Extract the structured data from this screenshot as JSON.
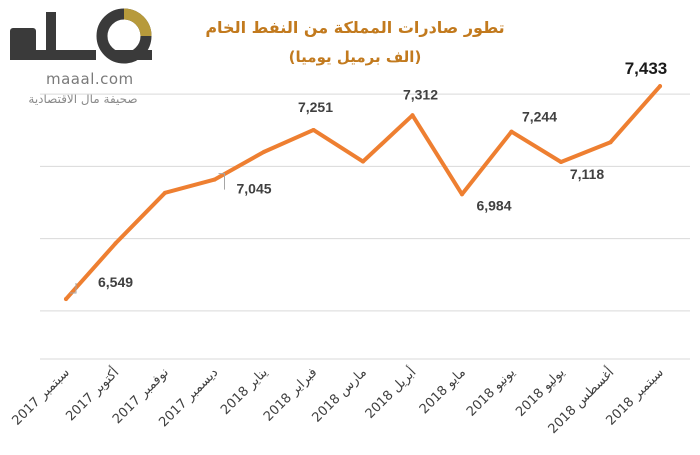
{
  "logo": {
    "site": "maaal.com",
    "tagline": "صحيفة مال الاقتصادية",
    "colors": {
      "dark": "#3a3a3a",
      "gold": "#b79a3b"
    }
  },
  "chart_data": {
    "type": "line",
    "title": "تطور صادرات المملكة من النفط الخام",
    "subtitle": "(الف برميل يوميا)",
    "categories": [
      "سبتمبر 2017",
      "أكتوبر 2017",
      "نوفمبر 2017",
      "ديسمبر 2017",
      "يناير 2018",
      "فبراير 2018",
      "مارس 2018",
      "أبريل 2018",
      "مايو 2018",
      "يونيو 2018",
      "يوليو 2018",
      "أغسطس 2018",
      "سبتمبر 2018"
    ],
    "series": [
      {
        "values": [
          6549,
          6780,
          6990,
          7045,
          7160,
          7251,
          7120,
          7312,
          6984,
          7244,
          7118,
          7200,
          7433
        ],
        "color": "#ee7f31"
      }
    ],
    "data_labels": [
      {
        "index": 0,
        "text": "6,549"
      },
      {
        "index": 3,
        "text": "7,045"
      },
      {
        "index": 5,
        "text": "7,251"
      },
      {
        "index": 7,
        "text": "7,312"
      },
      {
        "index": 8,
        "text": "6,984"
      },
      {
        "index": 9,
        "text": "7,244"
      },
      {
        "index": 10,
        "text": "7,118"
      },
      {
        "index": 12,
        "text": "7,433"
      }
    ],
    "ylim": [
      6300,
      7500
    ],
    "gridlines": [
      6500,
      6800,
      7100,
      7400
    ],
    "grid": true,
    "legend": false
  }
}
